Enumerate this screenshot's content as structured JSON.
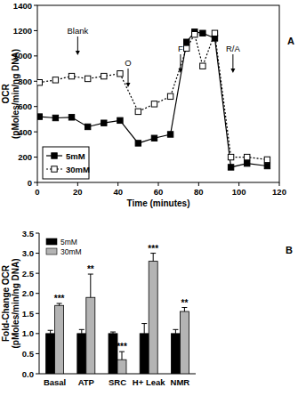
{
  "chart_data": [
    {
      "type": "line",
      "panel": "A",
      "x_label": "Time (minutes)",
      "y_label": [
        "OCR",
        "(pMoles/min/ng DNA)"
      ],
      "x": [
        1,
        9,
        17,
        25,
        33,
        41,
        50,
        58,
        66,
        74,
        78,
        82,
        88,
        96,
        104,
        114
      ],
      "series": [
        {
          "name": "5mM",
          "color": "#000000",
          "marker": "square",
          "line_style": "solid",
          "values": [
            520,
            510,
            515,
            440,
            470,
            490,
            310,
            350,
            380,
            1110,
            1190,
            1180,
            1140,
            120,
            150,
            130
          ]
        },
        {
          "name": "30mM",
          "color": "#000000",
          "marker": "open-square",
          "line_style": "dotted",
          "values": [
            790,
            810,
            840,
            820,
            840,
            860,
            560,
            620,
            680,
            1060,
            1170,
            920,
            1180,
            200,
            200,
            180
          ]
        }
      ],
      "xlim": [
        0,
        120
      ],
      "xticks": [
        0,
        20,
        40,
        60,
        80,
        100,
        120
      ],
      "ylim": [
        0,
        1400
      ],
      "yticks": [
        0,
        200,
        400,
        600,
        800,
        1000,
        1200,
        1400
      ],
      "legend": "lower left",
      "annotations": [
        {
          "text": "Blank",
          "x": 20
        },
        {
          "text": "O",
          "x": 45
        },
        {
          "text": "F",
          "x": 71
        },
        {
          "text": "R/A",
          "x": 97
        }
      ]
    },
    {
      "type": "bar",
      "panel": "B",
      "y_label": [
        "Fold-Change OCR",
        "(pMoles/min/ng DNA)"
      ],
      "categories": [
        "Basal",
        "ATP",
        "SRC",
        "H+ Leak",
        "NMR"
      ],
      "series": [
        {
          "name": "5mM",
          "color": "#000000",
          "values": [
            1,
            1,
            1,
            1,
            1
          ],
          "errors": [
            0.08,
            0.1,
            0.04,
            0.25,
            0.1
          ]
        },
        {
          "name": "30mM",
          "color": "#b4b4b4",
          "values": [
            1.7,
            1.9,
            0.35,
            2.8,
            1.55
          ],
          "errors": [
            0.05,
            0.58,
            0.2,
            0.2,
            0.1
          ],
          "significance": [
            "***",
            "**",
            "***",
            "***",
            "**"
          ]
        }
      ],
      "ylim": [
        0,
        3.5
      ],
      "yticks": [
        {
          "value": 0,
          "label": "0.0"
        },
        {
          "value": 0.5,
          "label": "0.5"
        },
        {
          "value": 1,
          "label": "1.0"
        },
        {
          "value": 1.5,
          "label": "1.5"
        },
        {
          "value": 2,
          "label": "2.0"
        },
        {
          "value": 2.5,
          "label": "2.5"
        },
        {
          "value": 3,
          "label": "3.0"
        },
        {
          "value": 3.5,
          "label": "3.5"
        }
      ],
      "legend": "upper left"
    }
  ]
}
